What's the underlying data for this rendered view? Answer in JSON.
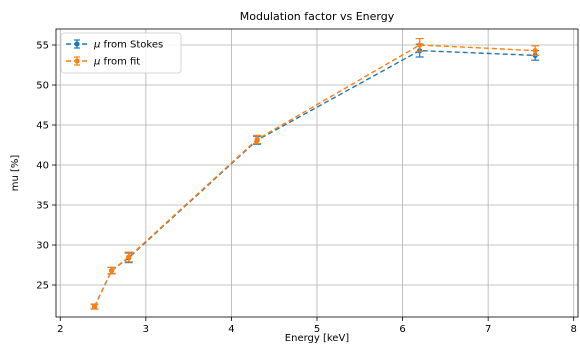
{
  "chart_data": {
    "type": "line",
    "title": "Modulation factor vs Energy",
    "xlabel": "Energy [keV]",
    "ylabel": "mu [%]",
    "xlim": [
      1.95,
      8.05
    ],
    "ylim": [
      21.0,
      57.0
    ],
    "xticks": [
      2,
      3,
      4,
      5,
      6,
      7,
      8
    ],
    "yticks": [
      25,
      30,
      35,
      40,
      45,
      50,
      55
    ],
    "grid": true,
    "legend_position": "top-left",
    "series": [
      {
        "name": "μ from Stokes",
        "legend_prefix": "μ",
        "legend_suffix": " from Stokes",
        "color": "#1f77b4",
        "linestyle": "dashed",
        "marker": "circle",
        "x": [
          2.4,
          2.6,
          2.8,
          4.3,
          6.2,
          7.55
        ],
        "y": [
          22.3,
          26.8,
          28.4,
          43.1,
          54.3,
          53.7
        ],
        "yerr": [
          0.3,
          0.4,
          0.6,
          0.5,
          0.8,
          0.6
        ]
      },
      {
        "name": "μ from fit",
        "legend_prefix": "μ",
        "legend_suffix": " from fit",
        "color": "#ff7f0e",
        "linestyle": "dashed",
        "marker": "circle",
        "x": [
          2.4,
          2.6,
          2.8,
          4.3,
          6.2,
          7.55
        ],
        "y": [
          22.3,
          26.8,
          28.5,
          43.2,
          55.0,
          54.3
        ],
        "yerr": [
          0.3,
          0.4,
          0.6,
          0.5,
          0.8,
          0.6
        ]
      }
    ]
  }
}
